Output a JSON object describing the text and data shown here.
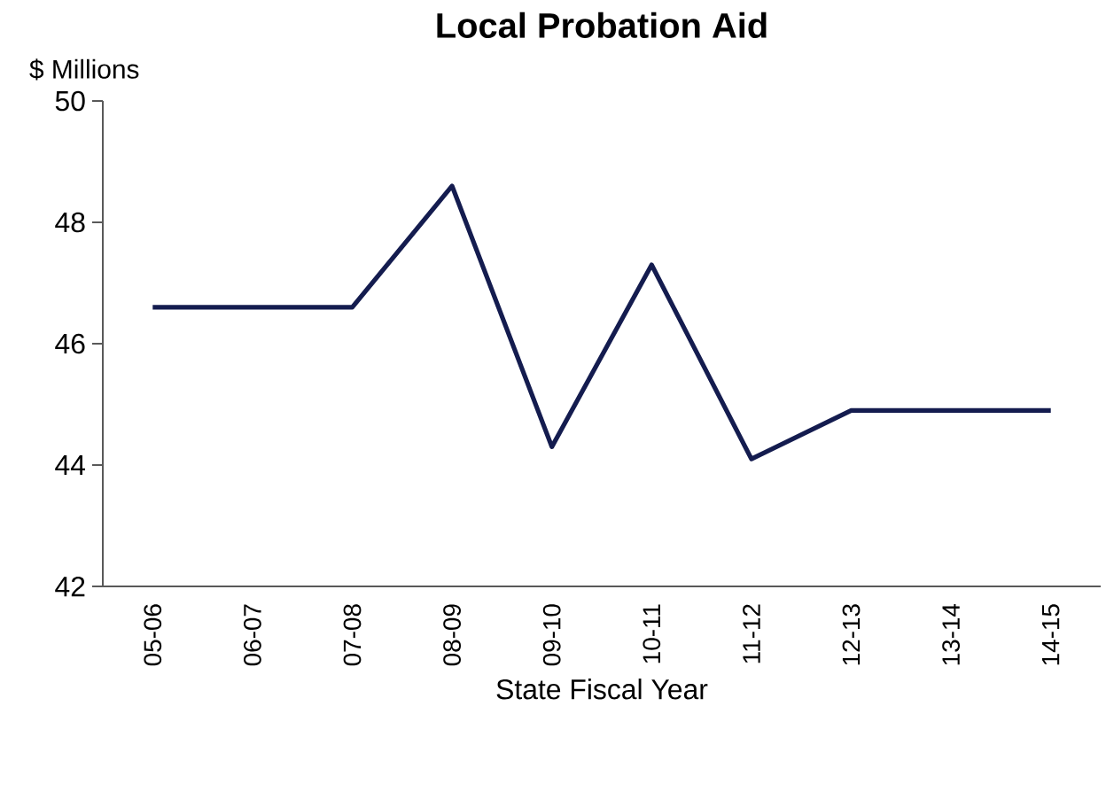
{
  "chart_data": {
    "type": "line",
    "title": "Local Probation Aid",
    "ylabel": "$ Millions",
    "xlabel": "State Fiscal Year",
    "categories": [
      "05-06",
      "06-07",
      "07-08",
      "08-09",
      "09-10",
      "10-11",
      "11-12",
      "12-13",
      "13-14",
      "14-15"
    ],
    "series": [
      {
        "color": "#141c4f",
        "values": [
          46.6,
          46.6,
          46.6,
          48.6,
          44.3,
          47.3,
          44.1,
          44.9,
          44.9,
          44.9
        ]
      }
    ],
    "ylim": [
      42,
      50
    ],
    "yticks": [
      42,
      44,
      46,
      48,
      50
    ],
    "grid": false,
    "marker": "none",
    "line_style": "solid"
  }
}
